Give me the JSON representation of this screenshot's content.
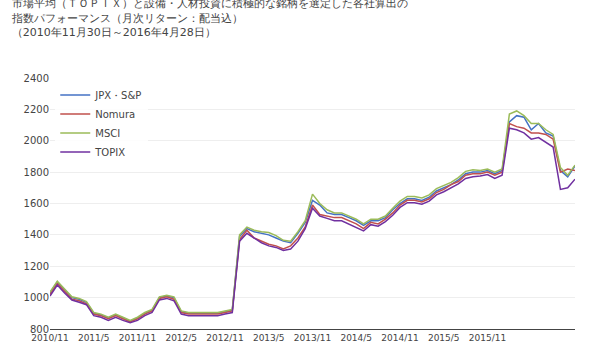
{
  "chart_data": {
    "type": "line",
    "title": "市場平均（ＴＯＰＩＸ）と設備・人材投資に積極的な銘柄を選定した各社算出の\n指数パフォーマンス（月次リターン：配当込）\n（2010年11月30日～2016年4月28日）",
    "categories": [
      "2010/11",
      null,
      null,
      null,
      null,
      null,
      "2011/5",
      null,
      null,
      null,
      null,
      null,
      "2011/11",
      null,
      null,
      null,
      null,
      null,
      "2012/5",
      null,
      null,
      null,
      null,
      null,
      "2012/11",
      null,
      null,
      null,
      null,
      null,
      "2013/5",
      null,
      null,
      null,
      null,
      null,
      "2013/11",
      null,
      null,
      null,
      null,
      null,
      "2014/5",
      null,
      null,
      null,
      null,
      null,
      "2014/11",
      null,
      null,
      null,
      null,
      null,
      "2015/5",
      null,
      null,
      null,
      null,
      null,
      "2015/11",
      null,
      null,
      null,
      null,
      null,
      null,
      null,
      null,
      null,
      null,
      null,
      null
    ],
    "series": [
      {
        "name": "JPX・S&P",
        "color": "#4472c4",
        "values": [
          1030,
          1100,
          1050,
          1000,
          990,
          970,
          900,
          890,
          870,
          890,
          870,
          850,
          870,
          900,
          920,
          1000,
          1010,
          1000,
          910,
          900,
          900,
          900,
          900,
          900,
          910,
          920,
          1390,
          1440,
          1420,
          1410,
          1400,
          1380,
          1360,
          1350,
          1410,
          1480,
          1620,
          1590,
          1540,
          1530,
          1530,
          1510,
          1490,
          1460,
          1490,
          1490,
          1510,
          1560,
          1600,
          1630,
          1630,
          1620,
          1640,
          1680,
          1700,
          1720,
          1750,
          1790,
          1800,
          1800,
          1810,
          1790,
          1810,
          2120,
          2160,
          2150,
          2070,
          2110,
          2050,
          2030,
          1810,
          1770,
          1840
        ]
      },
      {
        "name": "Nomura",
        "color": "#c0504d",
        "values": [
          1020,
          1090,
          1040,
          990,
          980,
          960,
          895,
          885,
          865,
          885,
          865,
          845,
          865,
          895,
          915,
          995,
          1005,
          990,
          905,
          895,
          895,
          895,
          895,
          895,
          905,
          915,
          1370,
          1430,
          1380,
          1360,
          1340,
          1330,
          1310,
          1330,
          1380,
          1450,
          1590,
          1530,
          1520,
          1510,
          1510,
          1490,
          1470,
          1440,
          1480,
          1470,
          1500,
          1540,
          1590,
          1620,
          1620,
          1610,
          1630,
          1670,
          1690,
          1720,
          1740,
          1780,
          1790,
          1790,
          1800,
          1780,
          1800,
          2110,
          2090,
          2080,
          2050,
          2050,
          2040,
          2010,
          1800,
          1820,
          1810
        ]
      },
      {
        "name": "MSCI",
        "color": "#9bbb59",
        "values": [
          1035,
          1105,
          1055,
          1005,
          995,
          975,
          905,
          895,
          875,
          895,
          875,
          855,
          875,
          905,
          925,
          1005,
          1015,
          1005,
          915,
          905,
          905,
          905,
          905,
          905,
          915,
          925,
          1400,
          1450,
          1430,
          1420,
          1415,
          1395,
          1365,
          1360,
          1420,
          1490,
          1660,
          1600,
          1560,
          1540,
          1540,
          1520,
          1500,
          1470,
          1500,
          1500,
          1520,
          1570,
          1615,
          1645,
          1645,
          1635,
          1655,
          1695,
          1715,
          1735,
          1765,
          1805,
          1815,
          1810,
          1820,
          1800,
          1820,
          2170,
          2190,
          2160,
          2110,
          2110,
          2070,
          2040,
          1830,
          1780,
          1845
        ]
      },
      {
        "name": "TOPIX",
        "color": "#7030a0",
        "values": [
          1010,
          1080,
          1030,
          985,
          970,
          955,
          885,
          875,
          855,
          875,
          855,
          840,
          855,
          885,
          905,
          985,
          995,
          980,
          895,
          885,
          885,
          885,
          885,
          885,
          895,
          905,
          1360,
          1410,
          1380,
          1350,
          1330,
          1320,
          1300,
          1310,
          1360,
          1440,
          1570,
          1520,
          1505,
          1490,
          1490,
          1470,
          1450,
          1425,
          1465,
          1455,
          1485,
          1525,
          1575,
          1605,
          1605,
          1595,
          1615,
          1655,
          1675,
          1700,
          1725,
          1760,
          1770,
          1775,
          1785,
          1760,
          1780,
          2080,
          2070,
          2050,
          2010,
          2020,
          1990,
          1960,
          1690,
          1700,
          1755
        ]
      }
    ],
    "ylim": [
      800,
      2400
    ],
    "yticks": [
      800,
      1000,
      1200,
      1400,
      1600,
      1800,
      2000,
      2200,
      2400
    ],
    "grid": true,
    "legend": "upper left"
  }
}
